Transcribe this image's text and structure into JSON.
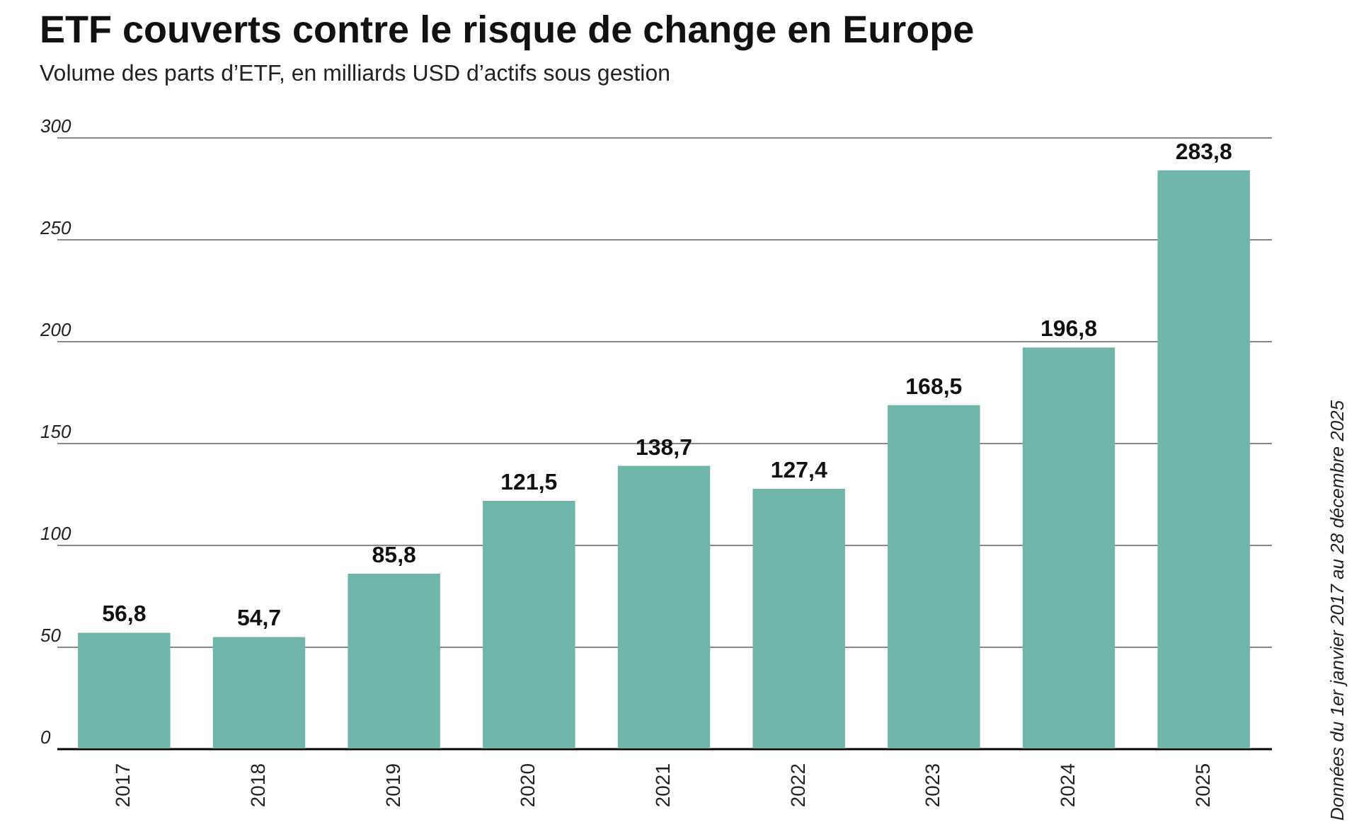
{
  "chart_data": {
    "type": "bar",
    "title": "ETF couverts contre le risque de change en Europe",
    "subtitle": "Volume des parts d’ETF, en milliards USD d’actifs sous gestion",
    "categories": [
      "2017",
      "2018",
      "2019",
      "2020",
      "2021",
      "2022",
      "2023",
      "2024",
      "2025"
    ],
    "values": [
      56.8,
      54.7,
      85.8,
      121.5,
      138.7,
      127.4,
      168.5,
      196.8,
      283.8
    ],
    "value_labels": [
      "56,8",
      "54,7",
      "85,8",
      "121,5",
      "138,7",
      "127,4",
      "168,5",
      "196,8",
      "283,8"
    ],
    "color": "#6fb5aa",
    "ylim": [
      0,
      300
    ],
    "yticks": [
      0,
      50,
      100,
      150,
      200,
      250,
      300
    ],
    "grid": "y",
    "annotations": [
      "Données du 1er janvier 2017 au 28 décembre 2025"
    ]
  }
}
